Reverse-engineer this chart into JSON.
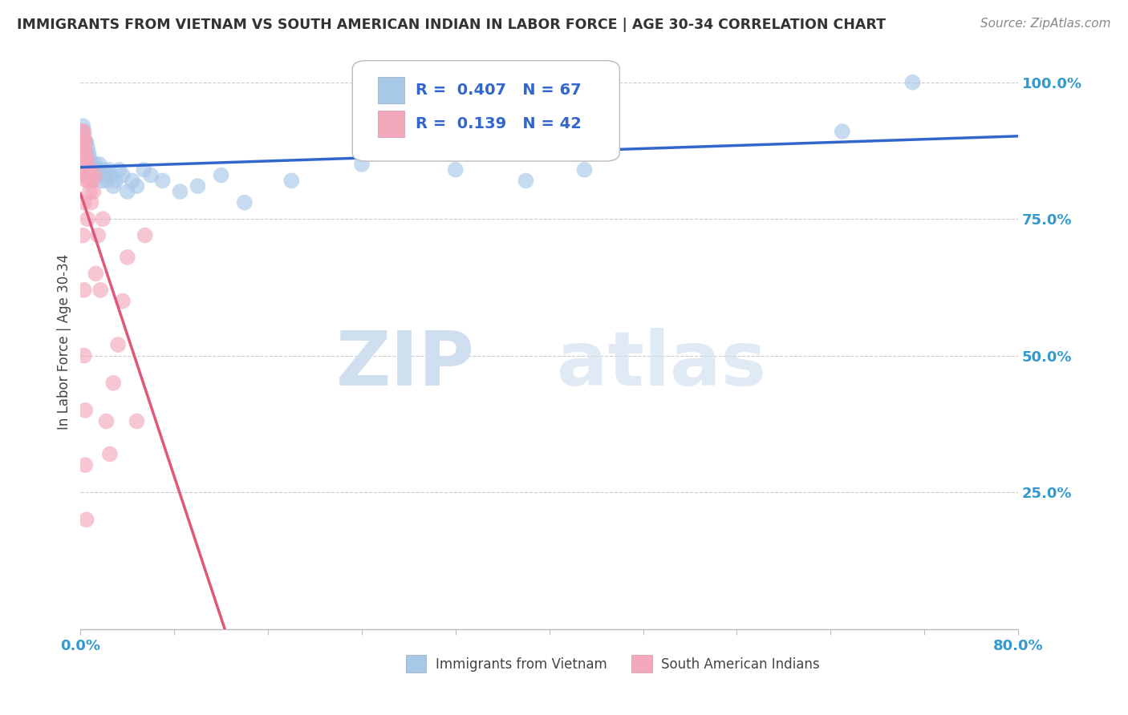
{
  "title": "IMMIGRANTS FROM VIETNAM VS SOUTH AMERICAN INDIAN IN LABOR FORCE | AGE 30-34 CORRELATION CHART",
  "source": "Source: ZipAtlas.com",
  "ylabel": "In Labor Force | Age 30-34",
  "xmin": 0.0,
  "xmax": 0.8,
  "ymin": 0.0,
  "ymax": 1.05,
  "ytick_positions": [
    0.0,
    0.25,
    0.5,
    0.75,
    1.0
  ],
  "ytick_labels": [
    "",
    "25.0%",
    "50.0%",
    "75.0%",
    "100.0%"
  ],
  "blue_color": "#A8C8E8",
  "pink_color": "#F4A8BC",
  "blue_line_color": "#3366CC",
  "pink_line_color": "#E05878",
  "legend_R_blue": "0.407",
  "legend_N_blue": "67",
  "legend_R_pink": "0.139",
  "legend_N_pink": "42",
  "legend_label_blue": "Immigrants from Vietnam",
  "legend_label_pink": "South American Indians",
  "blue_x": [
    0.001,
    0.001,
    0.001,
    0.002,
    0.002,
    0.002,
    0.002,
    0.002,
    0.003,
    0.003,
    0.003,
    0.003,
    0.003,
    0.004,
    0.004,
    0.004,
    0.004,
    0.005,
    0.005,
    0.005,
    0.005,
    0.006,
    0.006,
    0.006,
    0.007,
    0.007,
    0.007,
    0.008,
    0.008,
    0.009,
    0.009,
    0.01,
    0.01,
    0.011,
    0.012,
    0.013,
    0.014,
    0.015,
    0.016,
    0.017,
    0.018,
    0.019,
    0.02,
    0.022,
    0.024,
    0.026,
    0.028,
    0.03,
    0.033,
    0.036,
    0.04,
    0.044,
    0.048,
    0.054,
    0.06,
    0.07,
    0.085,
    0.1,
    0.12,
    0.14,
    0.18,
    0.24,
    0.32,
    0.38,
    0.43,
    0.65,
    0.71
  ],
  "blue_y": [
    0.87,
    0.89,
    0.91,
    0.84,
    0.86,
    0.88,
    0.9,
    0.92,
    0.85,
    0.87,
    0.89,
    0.91,
    0.85,
    0.87,
    0.89,
    0.84,
    0.86,
    0.83,
    0.85,
    0.87,
    0.89,
    0.84,
    0.86,
    0.88,
    0.83,
    0.85,
    0.87,
    0.84,
    0.86,
    0.83,
    0.85,
    0.82,
    0.84,
    0.83,
    0.85,
    0.84,
    0.83,
    0.84,
    0.85,
    0.83,
    0.82,
    0.84,
    0.83,
    0.82,
    0.84,
    0.83,
    0.81,
    0.82,
    0.84,
    0.83,
    0.8,
    0.82,
    0.81,
    0.84,
    0.83,
    0.82,
    0.8,
    0.81,
    0.83,
    0.78,
    0.82,
    0.85,
    0.84,
    0.82,
    0.84,
    0.91,
    1.0
  ],
  "pink_x": [
    0.001,
    0.001,
    0.001,
    0.002,
    0.002,
    0.002,
    0.002,
    0.003,
    0.003,
    0.003,
    0.003,
    0.003,
    0.004,
    0.004,
    0.004,
    0.004,
    0.005,
    0.005,
    0.005,
    0.006,
    0.006,
    0.006,
    0.007,
    0.007,
    0.008,
    0.008,
    0.009,
    0.01,
    0.011,
    0.012,
    0.013,
    0.015,
    0.017,
    0.019,
    0.022,
    0.025,
    0.028,
    0.032,
    0.036,
    0.04,
    0.048,
    0.055
  ],
  "pink_y": [
    0.87,
    0.89,
    0.91,
    0.85,
    0.87,
    0.89,
    0.91,
    0.84,
    0.86,
    0.88,
    0.9,
    0.78,
    0.85,
    0.87,
    0.89,
    0.83,
    0.82,
    0.84,
    0.86,
    0.83,
    0.85,
    0.75,
    0.84,
    0.82,
    0.8,
    0.83,
    0.78,
    0.82,
    0.8,
    0.83,
    0.65,
    0.72,
    0.62,
    0.75,
    0.38,
    0.32,
    0.45,
    0.52,
    0.6,
    0.68,
    0.38,
    0.72
  ],
  "pink_outlier_x": [
    0.002,
    0.003,
    0.003,
    0.004,
    0.004,
    0.005
  ],
  "pink_outlier_y": [
    0.72,
    0.62,
    0.5,
    0.4,
    0.3,
    0.2
  ],
  "background_color": "#FFFFFF",
  "grid_color": "#CCCCCC",
  "title_color": "#333333",
  "watermark_zip": "ZIP",
  "watermark_atlas": "atlas",
  "watermark_color": "#D0DFF0"
}
